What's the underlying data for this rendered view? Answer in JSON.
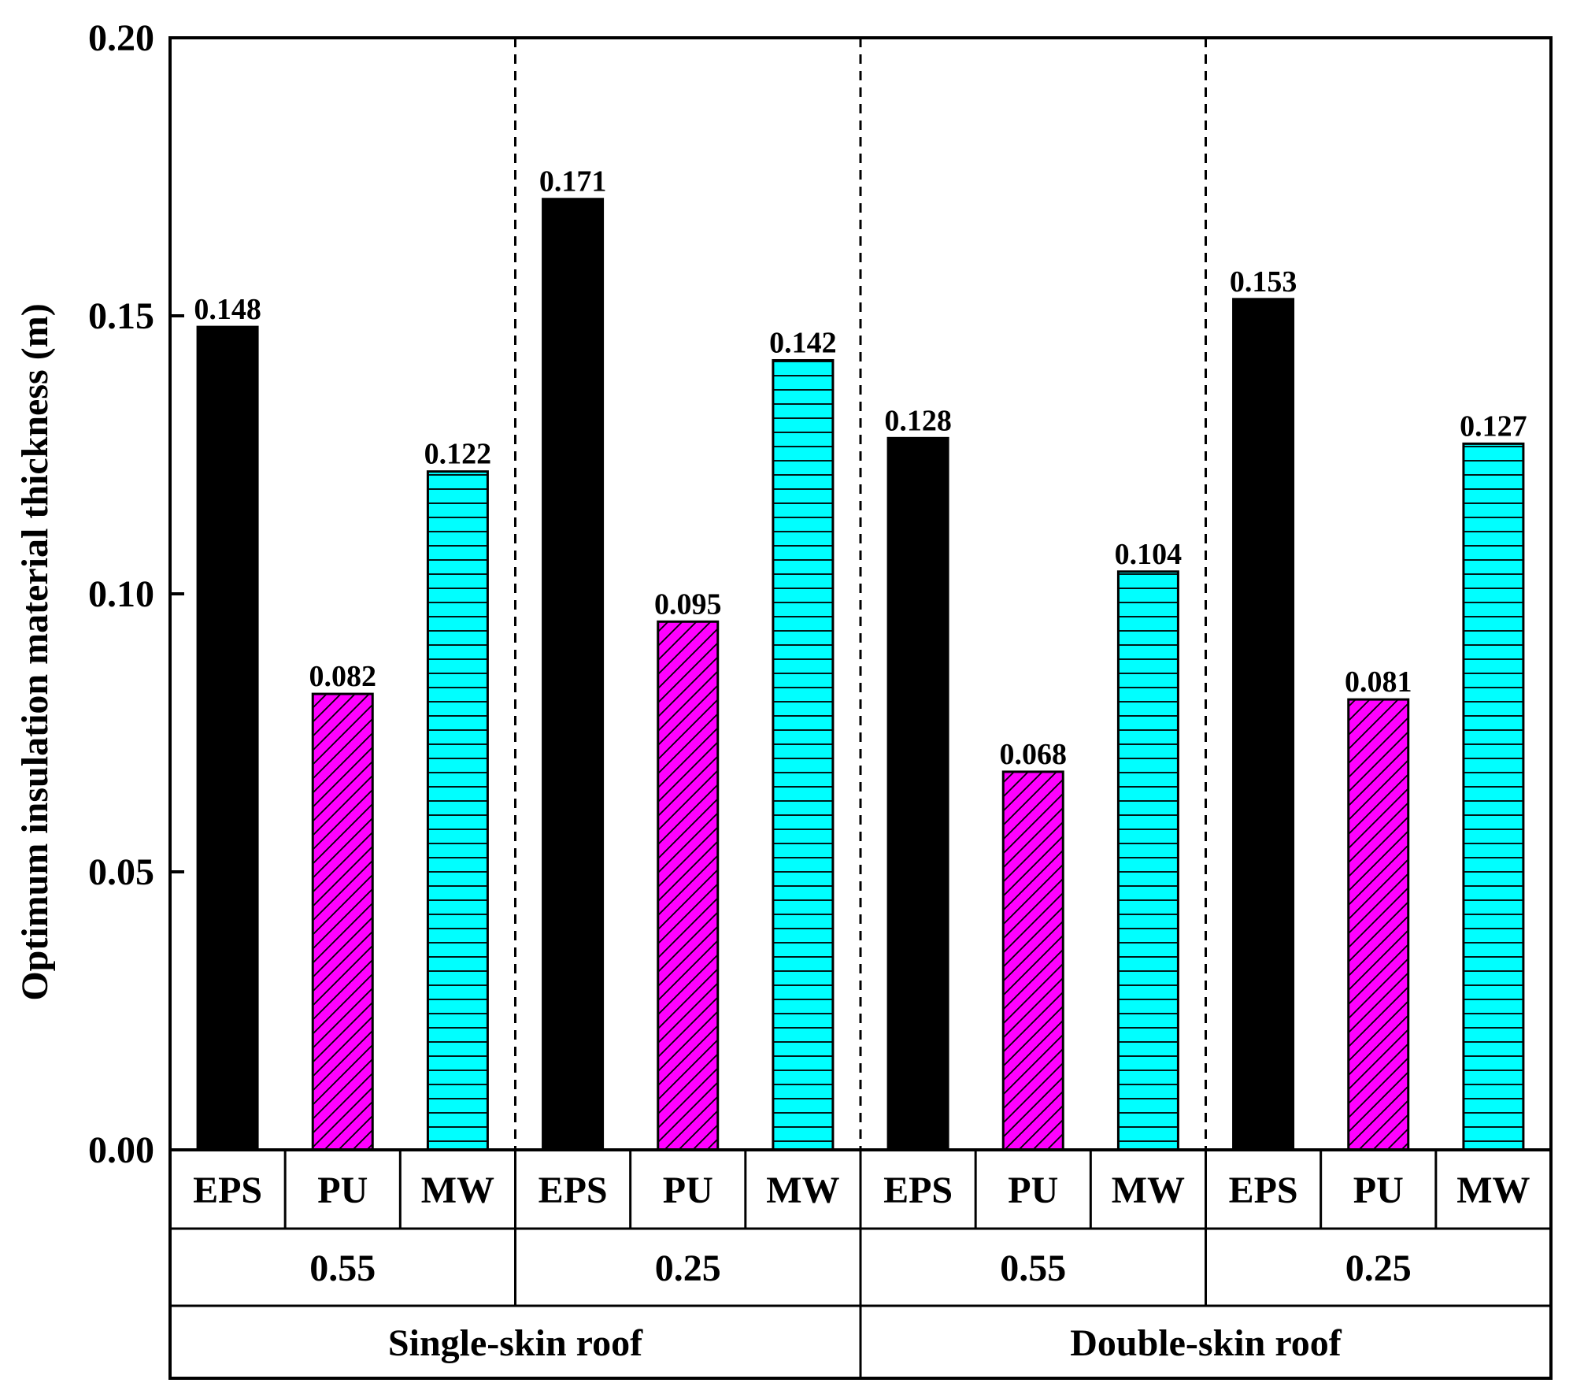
{
  "chart_data": {
    "type": "bar",
    "ylabel": "Optimum insulation material thickness (m)",
    "ylim": [
      0,
      0.2
    ],
    "yticks": [
      "0.00",
      "0.05",
      "0.10",
      "0.15",
      "0.20"
    ],
    "grid": false,
    "bars": [
      {
        "material": "EPS",
        "value": 0.148,
        "label": "0.148"
      },
      {
        "material": "PU",
        "value": 0.082,
        "label": "0.082"
      },
      {
        "material": "MW",
        "value": 0.122,
        "label": "0.122"
      },
      {
        "material": "EPS",
        "value": 0.171,
        "label": "0.171"
      },
      {
        "material": "PU",
        "value": 0.095,
        "label": "0.095"
      },
      {
        "material": "MW",
        "value": 0.142,
        "label": "0.142"
      },
      {
        "material": "EPS",
        "value": 0.128,
        "label": "0.128"
      },
      {
        "material": "PU",
        "value": 0.068,
        "label": "0.068"
      },
      {
        "material": "MW",
        "value": 0.104,
        "label": "0.104"
      },
      {
        "material": "EPS",
        "value": 0.153,
        "label": "0.153"
      },
      {
        "material": "PU",
        "value": 0.081,
        "label": "0.081"
      },
      {
        "material": "MW",
        "value": 0.127,
        "label": "0.127"
      }
    ],
    "groups_level2": [
      "0.55",
      "0.25",
      "0.55",
      "0.25"
    ],
    "groups_level1": [
      "Single-skin roof",
      "Double-skin roof"
    ],
    "materials": {
      "EPS": {
        "color": "#000000",
        "pattern": "solid"
      },
      "PU": {
        "color": "#ff00ff",
        "pattern": "diagonal-hatch"
      },
      "MW": {
        "color": "#00ffff",
        "pattern": "horizontal-lines"
      }
    }
  }
}
